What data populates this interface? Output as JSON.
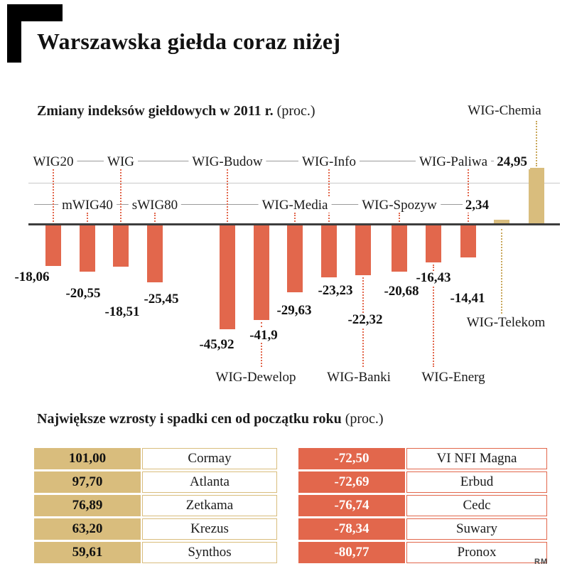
{
  "header": {
    "title": "Warszawska giełda coraz niżej"
  },
  "chart_section": {
    "title": "Zmiany indeksów giełdowych w 2011 r.",
    "title_suffix": "(proc.)"
  },
  "chart_data": {
    "type": "bar",
    "title": "Zmiany indeksów giełdowych w 2011 r. (proc.)",
    "unit": "proc.",
    "categories": [
      "WIG20",
      "mWIG40",
      "WIG",
      "sWIG80",
      "WIG-Budow",
      "WIG-Dewelop",
      "WIG-Media",
      "WIG-Info",
      "WIG-Banki",
      "WIG-Spozyw",
      "WIG-Energ",
      "WIG-Paliwa",
      "WIG-Telekom",
      "WIG-Chemia"
    ],
    "values": [
      -18.06,
      -20.55,
      -18.51,
      -25.45,
      -45.92,
      -41.9,
      -29.63,
      -23.23,
      -22.32,
      -20.68,
      -16.43,
      -14.41,
      2.34,
      24.95
    ],
    "value_labels": [
      "-18,06",
      "-20,55",
      "-18,51",
      "-25,45",
      "-45,92",
      "-41,9",
      "-29,63",
      "-23,23",
      "-22,32",
      "-20,68",
      "-16,43",
      "-14,41",
      "2,34",
      "24,95"
    ],
    "ylim": [
      -50,
      30
    ],
    "zero_line": true,
    "grid": "horizontal",
    "legend": "none",
    "negative_color": "#e2674c",
    "positive_color": "#d9bd7d"
  },
  "tables_section": {
    "title": "Największe wzrosty i spadki cen od początku roku",
    "title_suffix": "(proc.)",
    "gainers": [
      {
        "value": "101,00",
        "name": "Cormay"
      },
      {
        "value": "97,70",
        "name": "Atlanta"
      },
      {
        "value": "76,89",
        "name": "Zetkama"
      },
      {
        "value": "63,20",
        "name": "Krezus"
      },
      {
        "value": "59,61",
        "name": "Synthos"
      }
    ],
    "losers": [
      {
        "value": "-72,50",
        "name": "VI NFI Magna"
      },
      {
        "value": "-72,69",
        "name": "Erbud"
      },
      {
        "value": "-76,74",
        "name": "Cedc"
      },
      {
        "value": "-78,34",
        "name": "Suwary"
      },
      {
        "value": "-80,77",
        "name": "Pronox"
      }
    ]
  },
  "colors": {
    "salmon": "#e2674c",
    "tan": "#d9bd7d",
    "tan_line": "#c9a75a",
    "zero_line": "#3d3d3d",
    "gridline": "#c9c9c9",
    "leader_line": "#9b9b9b"
  },
  "footer": {
    "credit": "RM"
  }
}
